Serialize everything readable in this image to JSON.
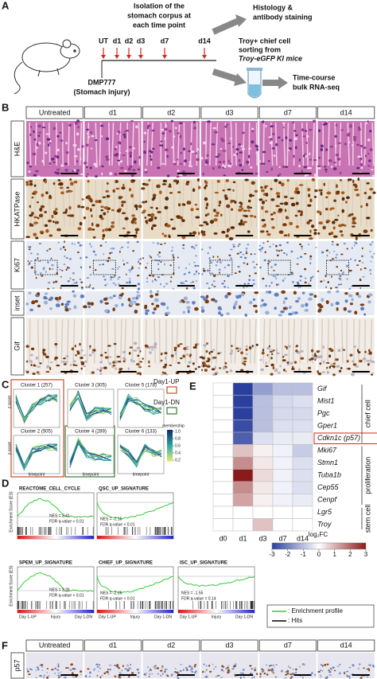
{
  "panel_a": {
    "label": "A",
    "title_lines": [
      "Isolation of the",
      "stomach corpus at",
      "each time point"
    ],
    "timepoints": [
      "UT",
      "d1",
      "d2",
      "d3",
      "d7",
      "d14"
    ],
    "injury": [
      "DMP777",
      "(Stomach injury)"
    ],
    "histology": [
      "Histology &",
      "antibody staining"
    ],
    "sorting": [
      "Troy+ chief cell",
      "sorting from",
      "Troy-eGFP KI mice"
    ],
    "rnaseq": [
      "Time-course",
      "bulk RNA-seq"
    ]
  },
  "panel_b": {
    "label": "B",
    "columns": [
      "Untreated",
      "d1",
      "d2",
      "d3",
      "d7",
      "d14"
    ],
    "rows": [
      "H&E",
      "HKATPase",
      "Ki67",
      "inset",
      "Gif"
    ]
  },
  "panel_c": {
    "label": "C",
    "clusters": [
      "Cluster 1 (257)",
      "Cluster 3 (305)",
      "Cluster 5 (178)",
      "Cluster 2 (505)",
      "Cluster 4 (289)",
      "Cluster 6 (133)"
    ],
    "legend": [
      "Day1-UP",
      "Day1-DN"
    ],
    "membership_title": "membership",
    "membership_ticks": [
      {
        "value": 1,
        "label": "1.0"
      },
      0.8,
      0.6,
      0.4,
      0.2
    ],
    "x_label": "timepoint",
    "y_label": "z-score"
  },
  "panel_d": {
    "label": "D",
    "plots": [
      {
        "title": "REACTOME_CELL_CYCLE",
        "nes": "NES = 2.41",
        "fdr": "FDR q-value < 0.01"
      },
      {
        "title": "QSC_UP_SIGNATURE",
        "nes": "NES = -2.15",
        "fdr": "FDR q-value < 0.01"
      },
      {
        "title": "SPEM_UP_SIGNATURE",
        "nes": "NES = 2.26",
        "fdr": "FDR q-value < 0.01"
      },
      {
        "title": "CHIEF_UP_SIGNATURE",
        "nes": "NES = -2.16",
        "fdr": "FDR q-value < 0.01"
      },
      {
        "title": "ISC_UP_SIGNATURE",
        "nes": "NES = -1.55",
        "fdr": "FDR q-value = 0.14"
      }
    ],
    "y_label": "Enrichment Score (ES)",
    "axis_labels": [
      "Day 1-UP",
      "Injury",
      "Day 1-DN"
    ],
    "legend": [
      ": Enrichment profile",
      ": Hits"
    ]
  },
  "panel_e": {
    "label": "E",
    "columns": [
      "d0",
      "d1",
      "d3",
      "d7",
      "d14"
    ],
    "genes": [
      "Gif",
      "Mist1",
      "Pgc",
      "Gper1",
      "Cdkn1c (p57)",
      "Mki67",
      "Stmn1",
      "Tuba1b",
      "Cep55",
      "Cenpf",
      "Lgr5",
      "Troy"
    ],
    "values": [
      [
        0,
        -3,
        -1.5,
        -1,
        -1
      ],
      [
        0,
        -3,
        -1,
        -0.6,
        -0.5
      ],
      [
        0,
        -3,
        -1,
        -0.6,
        -0.6
      ],
      [
        0,
        -2.8,
        -1,
        -0.5,
        -0.5
      ],
      [
        0,
        -2.5,
        -0.5,
        -0.3,
        -0.3
      ],
      [
        0,
        0.8,
        0.2,
        -0.2,
        -0.8
      ],
      [
        0,
        1.5,
        0.3,
        -0.2,
        -0.5
      ],
      [
        0,
        3,
        0.5,
        -0.2,
        -0.5
      ],
      [
        0,
        1.5,
        0.3,
        -0.2,
        -0.5
      ],
      [
        0,
        1.2,
        0.2,
        -0.2,
        -0.3
      ],
      [
        0,
        0,
        0,
        0,
        0
      ],
      [
        0,
        0,
        0.8,
        0,
        0
      ]
    ],
    "groups": [
      "chief cell",
      "proliferation",
      "stem cell"
    ],
    "colorbar_ticks": [
      -3,
      -2,
      -1,
      0,
      1,
      2,
      3
    ],
    "colorbar_label": "log₂FC"
  },
  "panel_f": {
    "label": "F",
    "columns": [
      "Untreated",
      "d1",
      "d2",
      "d3",
      "d7",
      "d14"
    ],
    "row": "p57"
  }
}
